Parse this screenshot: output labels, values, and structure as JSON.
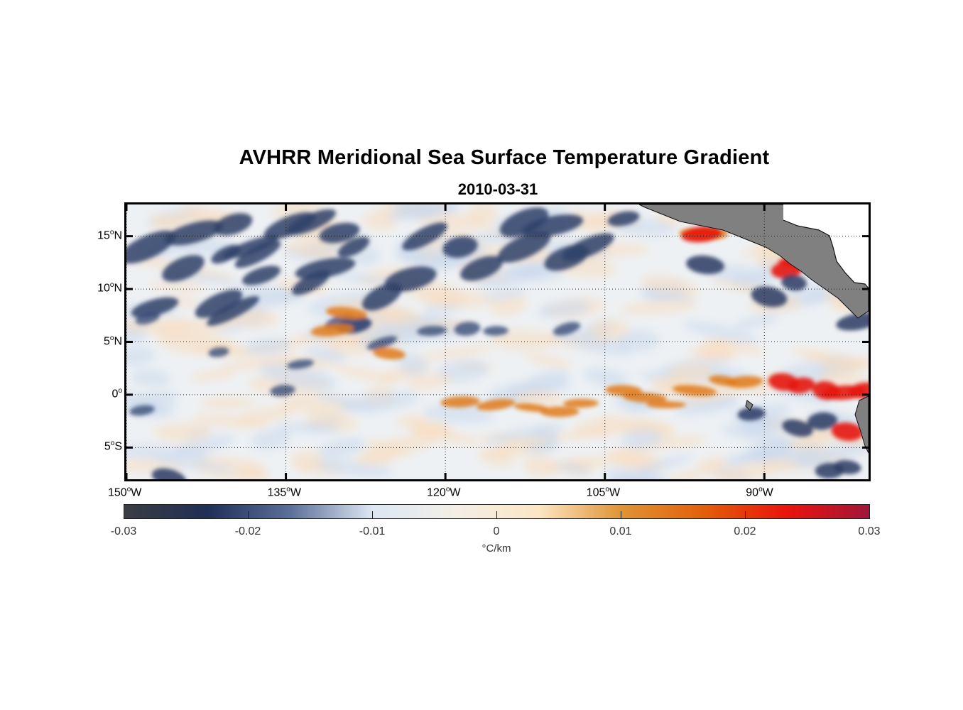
{
  "title": "AVHRR Meridional Sea Surface Temperature Gradient",
  "subtitle": "2010-03-31",
  "lat_labels": [
    {
      "deg": "15",
      "hem": "N",
      "value": 15
    },
    {
      "deg": "10",
      "hem": "N",
      "value": 10
    },
    {
      "deg": "5",
      "hem": "N",
      "value": 5
    },
    {
      "deg": "0",
      "hem": "",
      "value": 0
    },
    {
      "deg": "5",
      "hem": "S",
      "value": -5
    }
  ],
  "lon_labels": [
    {
      "deg": "150",
      "hem": "W",
      "value": -150
    },
    {
      "deg": "135",
      "hem": "W",
      "value": -135
    },
    {
      "deg": "120",
      "hem": "W",
      "value": -120
    },
    {
      "deg": "105",
      "hem": "W",
      "value": -105
    },
    {
      "deg": "90",
      "hem": "W",
      "value": -90
    }
  ],
  "colorbar": {
    "ticks": [
      "-0.03",
      "-0.02",
      "-0.01",
      "0",
      "0.01",
      "0.02",
      "0.03"
    ],
    "range": [
      -0.03,
      0.03
    ],
    "unit": "°C/km",
    "colors": [
      "#3b3d42",
      "#1f2f57",
      "#5a6f99",
      "#dde7f3",
      "#f3efe6",
      "#fce6c4",
      "#e09435",
      "#e25f0a",
      "#ea140c",
      "#a1163a"
    ]
  },
  "map": {
    "lon_range": [
      -150,
      -80.2
    ],
    "lat_range": [
      -8,
      18
    ],
    "land_color": "#808080",
    "ocean_background": "#eef1f4"
  }
}
